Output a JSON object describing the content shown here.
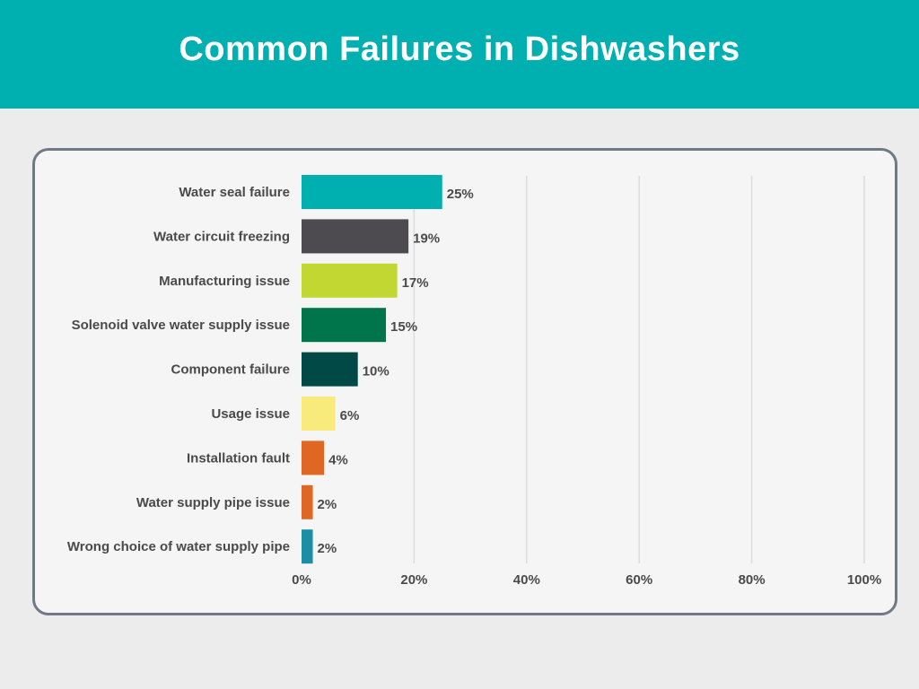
{
  "header": {
    "title": "Common Failures in Dishwashers"
  },
  "chart_data": {
    "type": "bar",
    "orientation": "horizontal",
    "title": "Common Failures in Dishwashers",
    "xlabel": "",
    "ylabel": "",
    "xlim": [
      0,
      100
    ],
    "grid": true,
    "categories": [
      "Water seal failure",
      "Water circuit freezing",
      "Manufacturing issue",
      "Solenoid valve water supply issue",
      "Component failure",
      "Usage issue",
      "Installation fault",
      "Water supply pipe issue",
      "Wrong choice of water supply pipe"
    ],
    "values": [
      25,
      19,
      17,
      15,
      10,
      6,
      4,
      2,
      2
    ],
    "value_labels": [
      "25%",
      "19%",
      "17%",
      "15%",
      "10%",
      "6%",
      "4%",
      "2%",
      "2%"
    ],
    "colors": [
      "#00b0b0",
      "#4d4b50",
      "#c2d731",
      "#00744a",
      "#004946",
      "#f9ea7c",
      "#e06623",
      "#e06623",
      "#1e8ea3"
    ],
    "ticks": [
      0,
      20,
      40,
      60,
      80,
      100
    ],
    "tick_labels": [
      "0%",
      "20%",
      "40%",
      "60%",
      "80%",
      "100%"
    ]
  }
}
